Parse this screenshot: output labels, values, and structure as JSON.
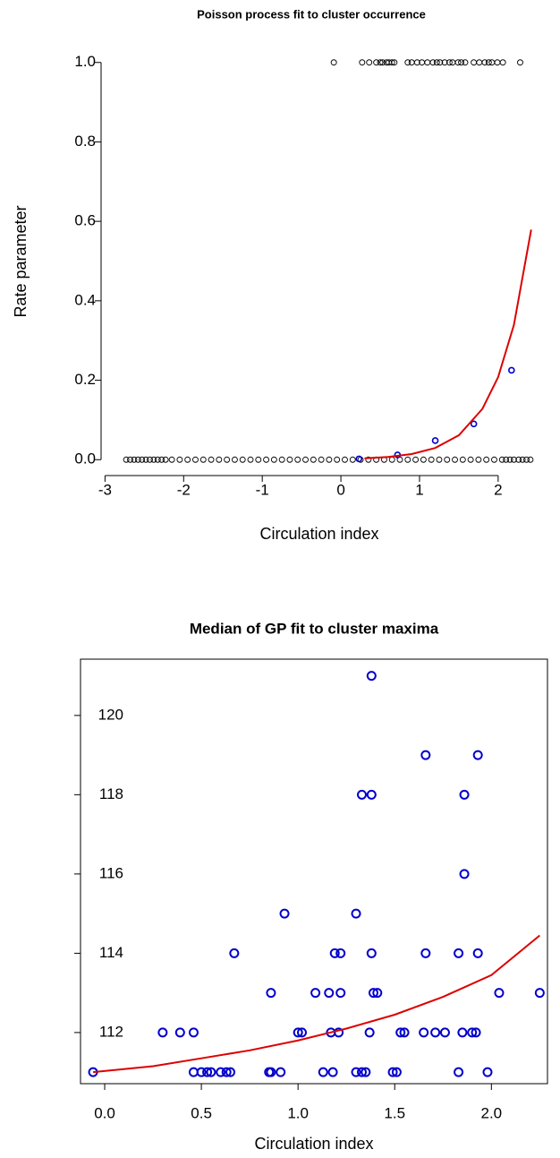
{
  "chart_data": [
    {
      "type": "scatter",
      "title": "Poisson process fit to cluster occurrence",
      "x_label": "Circulation index",
      "y_label": "Rate parameter",
      "xlim": [
        -3.05,
        2.65
      ],
      "ylim": [
        -0.04,
        1.04
      ],
      "box": false,
      "xticks": [
        -3,
        -2,
        -1,
        0,
        1,
        2
      ],
      "yticks": [
        {
          "value": 0,
          "label": "0.0"
        },
        {
          "value": 0.2,
          "label": "0.2"
        },
        {
          "value": 0.4,
          "label": "0.4"
        },
        {
          "value": 0.6,
          "label": "0.6"
        },
        {
          "value": 0.8,
          "label": "0.8"
        },
        {
          "value": 1,
          "label": "1.0"
        }
      ],
      "series": [
        {
          "color": "#000000",
          "kind": "points",
          "size": 3,
          "x": [
            -2.73,
            -2.68,
            -2.63,
            -2.58,
            -2.53,
            -2.48,
            -2.43,
            -2.38,
            -2.33,
            -2.28,
            -2.23,
            -2.15,
            -2.05,
            -1.95,
            -1.85,
            -1.75,
            -1.65,
            -1.55,
            -1.45,
            -1.35,
            -1.25,
            -1.15,
            -1.05,
            -0.95,
            -0.85,
            -0.75,
            -0.65,
            -0.55,
            -0.45,
            -0.35,
            -0.25,
            -0.15,
            -0.05,
            0.05,
            0.15,
            0.25,
            0.35,
            0.45,
            0.55,
            0.65,
            0.75,
            0.85,
            0.95,
            1.05,
            1.15,
            1.25,
            1.35,
            1.45,
            1.55,
            1.65,
            1.75,
            1.85,
            1.95,
            2.05,
            2.1,
            2.15,
            2.2,
            2.26,
            2.31,
            2.36,
            2.41
          ],
          "values": [
            0,
            0,
            0,
            0,
            0,
            0,
            0,
            0,
            0,
            0,
            0,
            0,
            0,
            0,
            0,
            0,
            0,
            0,
            0,
            0,
            0,
            0,
            0,
            0,
            0,
            0,
            0,
            0,
            0,
            0,
            0,
            0,
            0,
            0,
            0,
            0,
            0,
            0,
            0,
            0,
            0,
            0,
            0,
            0,
            0,
            0,
            0,
            0,
            0,
            0,
            0,
            0,
            0,
            0,
            0,
            0,
            0,
            0,
            0,
            0,
            0
          ]
        },
        {
          "color": "#000000",
          "kind": "points",
          "size": 3,
          "x": [
            -0.09,
            0.27,
            0.36,
            0.45,
            0.5,
            0.53,
            0.58,
            0.61,
            0.65,
            0.68,
            0.85,
            0.9,
            0.97,
            1.03,
            1.1,
            1.17,
            1.22,
            1.26,
            1.32,
            1.38,
            1.42,
            1.49,
            1.53,
            1.58,
            1.69,
            1.76,
            1.83,
            1.88,
            1.92,
            1.99,
            2.06,
            2.28
          ],
          "values": [
            1,
            1,
            1,
            1,
            1,
            1,
            1,
            1,
            1,
            1,
            1,
            1,
            1,
            1,
            1,
            1,
            1,
            1,
            1,
            1,
            1,
            1,
            1,
            1,
            1,
            1,
            1,
            1,
            1,
            1,
            1,
            1
          ]
        },
        {
          "color": "#0000cc",
          "kind": "points",
          "size": 3,
          "x": [
            0.23,
            0.72,
            1.2,
            1.69,
            2.17
          ],
          "values": [
            0.002,
            0.012,
            0.048,
            0.09,
            0.225
          ]
        },
        {
          "color": "#dd0000",
          "kind": "line",
          "x": [
            0.3,
            0.6,
            0.9,
            1.2,
            1.5,
            1.8,
            2.0,
            2.2,
            2.42
          ],
          "values": [
            0.0033,
            0.0068,
            0.0142,
            0.0295,
            0.0614,
            0.128,
            0.208,
            0.339,
            0.579
          ]
        }
      ]
    },
    {
      "type": "scatter",
      "title": "Median of GP fit to cluster maxima",
      "x_label": "Circulation index",
      "xlim": [
        -0.125,
        2.29
      ],
      "ylim": [
        110.71,
        121.42
      ],
      "box": true,
      "xticks": [
        {
          "value": 0,
          "label": "0.0"
        },
        0.5,
        {
          "value": 1,
          "label": "1.0"
        },
        1.5,
        {
          "value": 2,
          "label": "2.0"
        }
      ],
      "yticks": [
        112,
        114,
        116,
        118,
        120
      ],
      "series": [
        {
          "color": "#0000cc",
          "kind": "points",
          "size": 4.5,
          "x": [
            1.38,
            1.66,
            1.93,
            1.33,
            1.38,
            1.86,
            1.86,
            0.93,
            1.3,
            0.67,
            1.19,
            1.22,
            1.38,
            1.66,
            1.83,
            1.93,
            0.86,
            1.09,
            1.16,
            1.22,
            1.39,
            1.41,
            2.04,
            2.25,
            0.3,
            0.39,
            0.46,
            1.0,
            1.02,
            1.17,
            1.21,
            1.37,
            1.53,
            1.55,
            1.65,
            1.71,
            1.76,
            1.85,
            1.9,
            1.92,
            -0.06,
            0.46,
            0.5,
            0.53,
            0.55,
            0.6,
            0.63,
            0.65,
            0.85,
            0.86,
            0.91,
            1.13,
            1.18,
            1.3,
            1.33,
            1.35,
            1.49,
            1.51,
            1.83,
            1.98
          ],
          "values": [
            121,
            119,
            119,
            118,
            118,
            118,
            116,
            115,
            115,
            114,
            114,
            114,
            114,
            114,
            114,
            114,
            113,
            113,
            113,
            113,
            113,
            113,
            113,
            113,
            112,
            112,
            112,
            112,
            112,
            112,
            112,
            112,
            112,
            112,
            112,
            112,
            112,
            112,
            112,
            112,
            111,
            111,
            111,
            111,
            111,
            111,
            111,
            111,
            111,
            111,
            111,
            111,
            111,
            111,
            111,
            111,
            111,
            111,
            111,
            111
          ]
        },
        {
          "color": "#dd0000",
          "kind": "line",
          "x": [
            -0.06,
            0.25,
            0.5,
            0.75,
            1.0,
            1.25,
            1.5,
            1.75,
            2.0,
            2.25
          ],
          "values": [
            111.0,
            111.15,
            111.35,
            111.55,
            111.8,
            112.1,
            112.45,
            112.9,
            113.45,
            114.45
          ]
        }
      ]
    }
  ]
}
